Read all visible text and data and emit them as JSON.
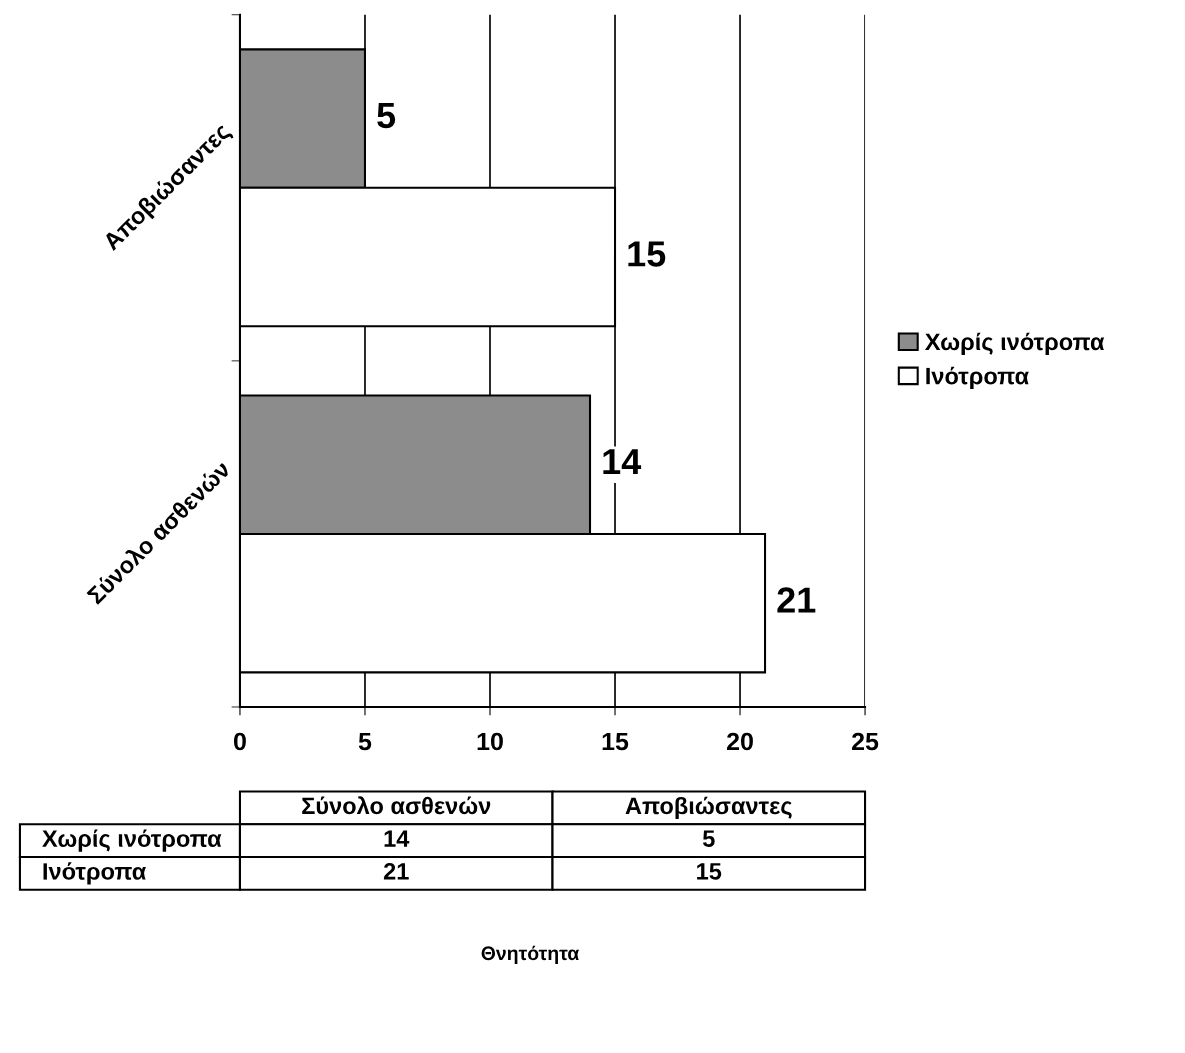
{
  "chart_data": {
    "type": "bar",
    "orientation": "horizontal",
    "annotations": [
      "Θνητότητα"
    ],
    "categories": [
      "Αποβιώσαντες",
      "Σύνολο ασθενών"
    ],
    "series": [
      {
        "name": "Χωρίς ινότροπα",
        "color": "#8c8c8c",
        "values": [
          5,
          14
        ],
        "value_labels": [
          "5",
          "14"
        ]
      },
      {
        "name": "Ινότροπα",
        "color": "#ffffff",
        "values": [
          15,
          21
        ],
        "value_labels": [
          "15",
          "21"
        ]
      }
    ],
    "xlim": [
      0,
      25
    ],
    "xticks": [
      0,
      5,
      10,
      15,
      20,
      25
    ],
    "grid": "x",
    "legend": "right",
    "data_labels": true
  }
}
